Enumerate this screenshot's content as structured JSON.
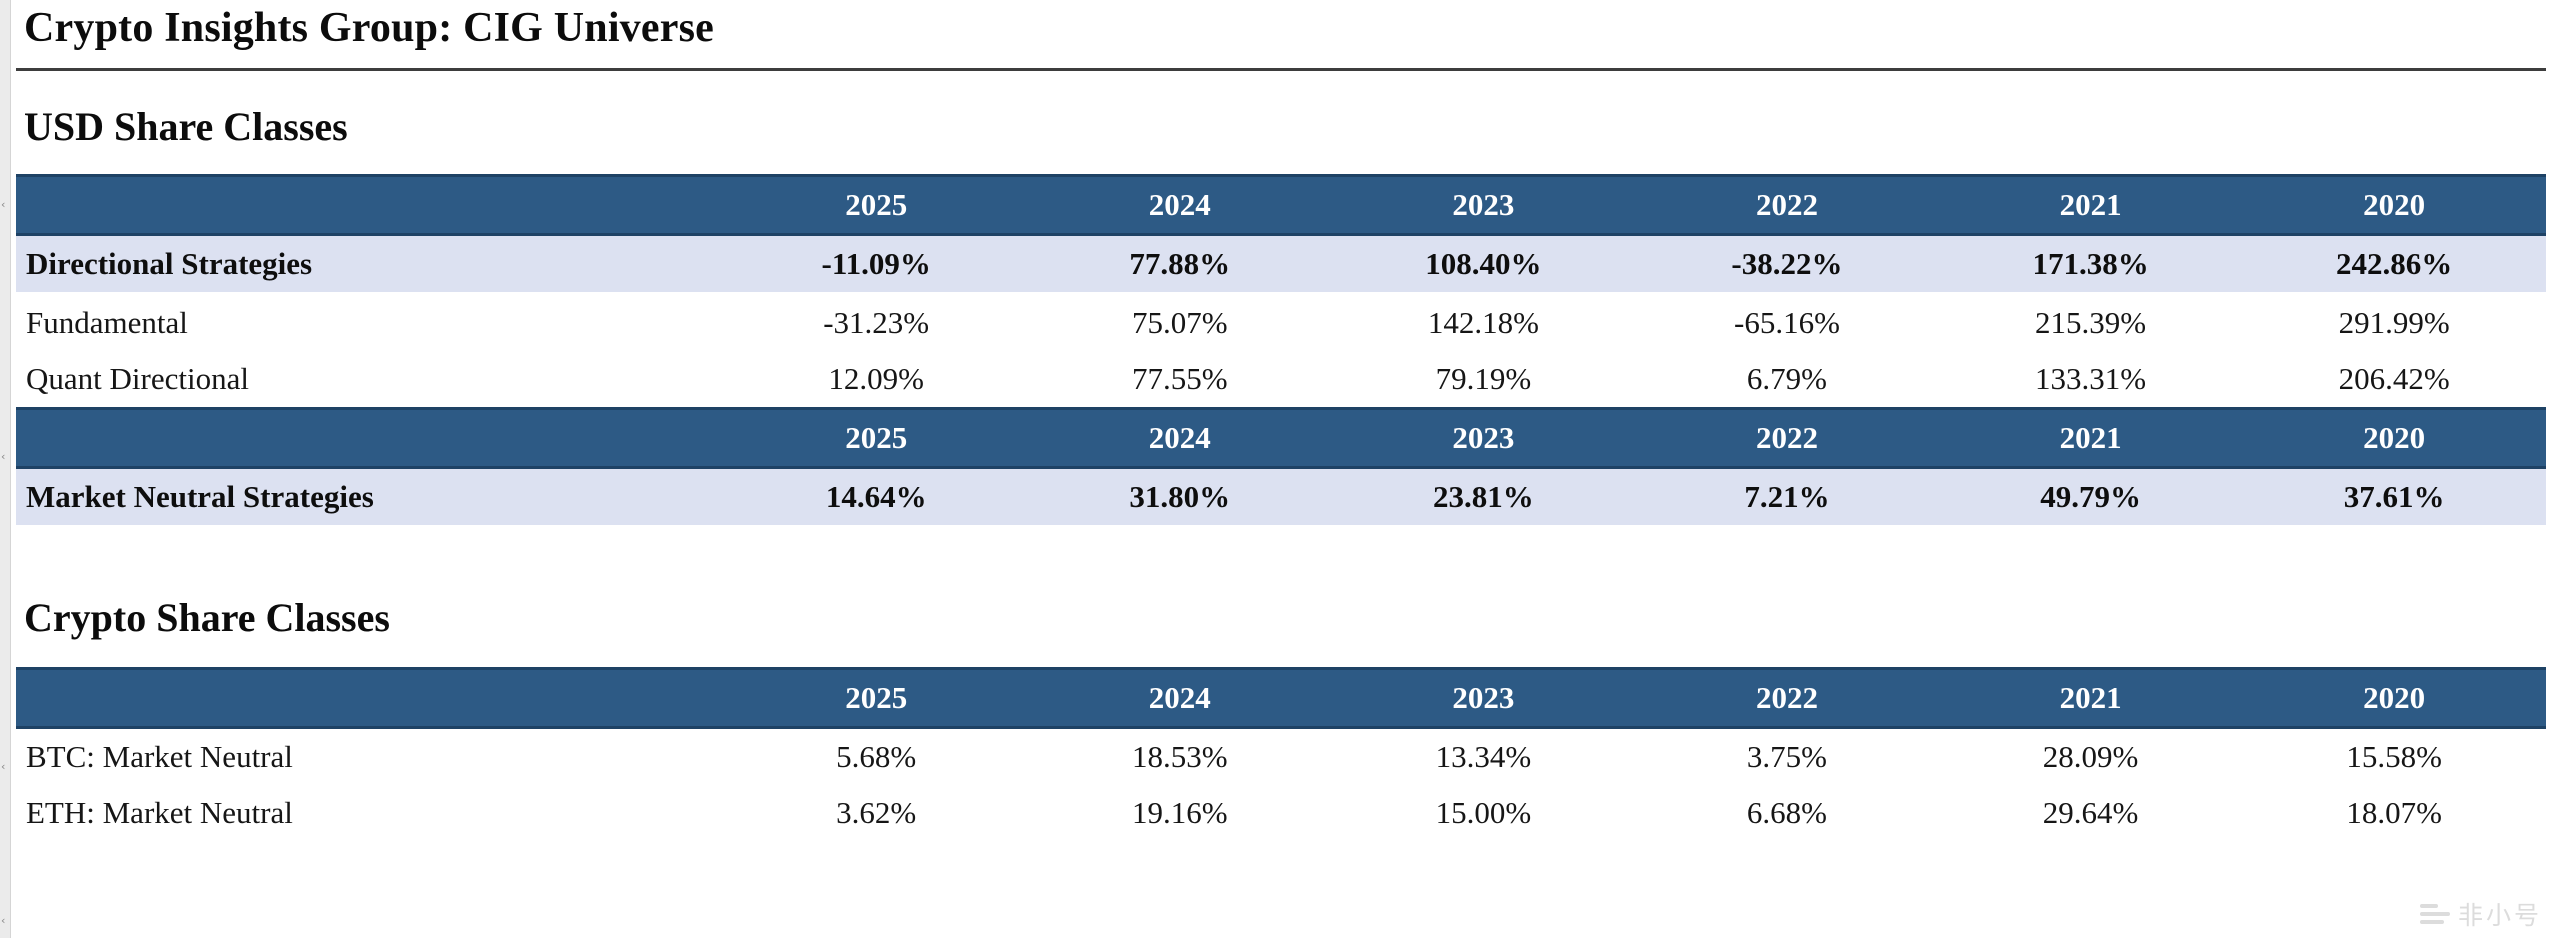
{
  "title": "Crypto Insights Group: CIG Universe",
  "years": [
    "2025",
    "2024",
    "2023",
    "2022",
    "2021",
    "2020"
  ],
  "sections": [
    {
      "heading": "USD Share Classes",
      "blocks": [
        {
          "rows": [
            {
              "label": "Directional Strategies",
              "bold": true,
              "shaded": true,
              "values": [
                "-11.09%",
                "77.88%",
                "108.40%",
                "-38.22%",
                "171.38%",
                "242.86%"
              ]
            },
            {
              "label": "Fundamental",
              "bold": false,
              "shaded": false,
              "values": [
                "-31.23%",
                "75.07%",
                "142.18%",
                "-65.16%",
                "215.39%",
                "291.99%"
              ]
            },
            {
              "label": "Quant Directional",
              "bold": false,
              "shaded": false,
              "values": [
                "12.09%",
                "77.55%",
                "79.19%",
                "6.79%",
                "133.31%",
                "206.42%"
              ]
            }
          ]
        },
        {
          "rows": [
            {
              "label": "Market Neutral Strategies",
              "bold": true,
              "shaded": true,
              "values": [
                "14.64%",
                "31.80%",
                "23.81%",
                "7.21%",
                "49.79%",
                "37.61%"
              ]
            }
          ]
        }
      ]
    },
    {
      "heading": "Crypto Share Classes",
      "blocks": [
        {
          "rows": [
            {
              "label": "BTC: Market Neutral",
              "bold": false,
              "shaded": false,
              "values": [
                "5.68%",
                "18.53%",
                "13.34%",
                "3.75%",
                "28.09%",
                "15.58%"
              ]
            },
            {
              "label": "ETH: Market Neutral",
              "bold": false,
              "shaded": false,
              "values": [
                "3.62%",
                "19.16%",
                "15.00%",
                "6.68%",
                "29.64%",
                "18.07%"
              ]
            }
          ]
        }
      ]
    }
  ],
  "watermark": {
    "text": "非小号",
    "icon": "feixiaohao-logo"
  },
  "colors": {
    "header_bg": "#2d5a85",
    "header_border": "#1e4265",
    "shaded_row": "#dce1f1",
    "title_rule": "#3d3d3d",
    "watermark": "#dcdcdc"
  }
}
